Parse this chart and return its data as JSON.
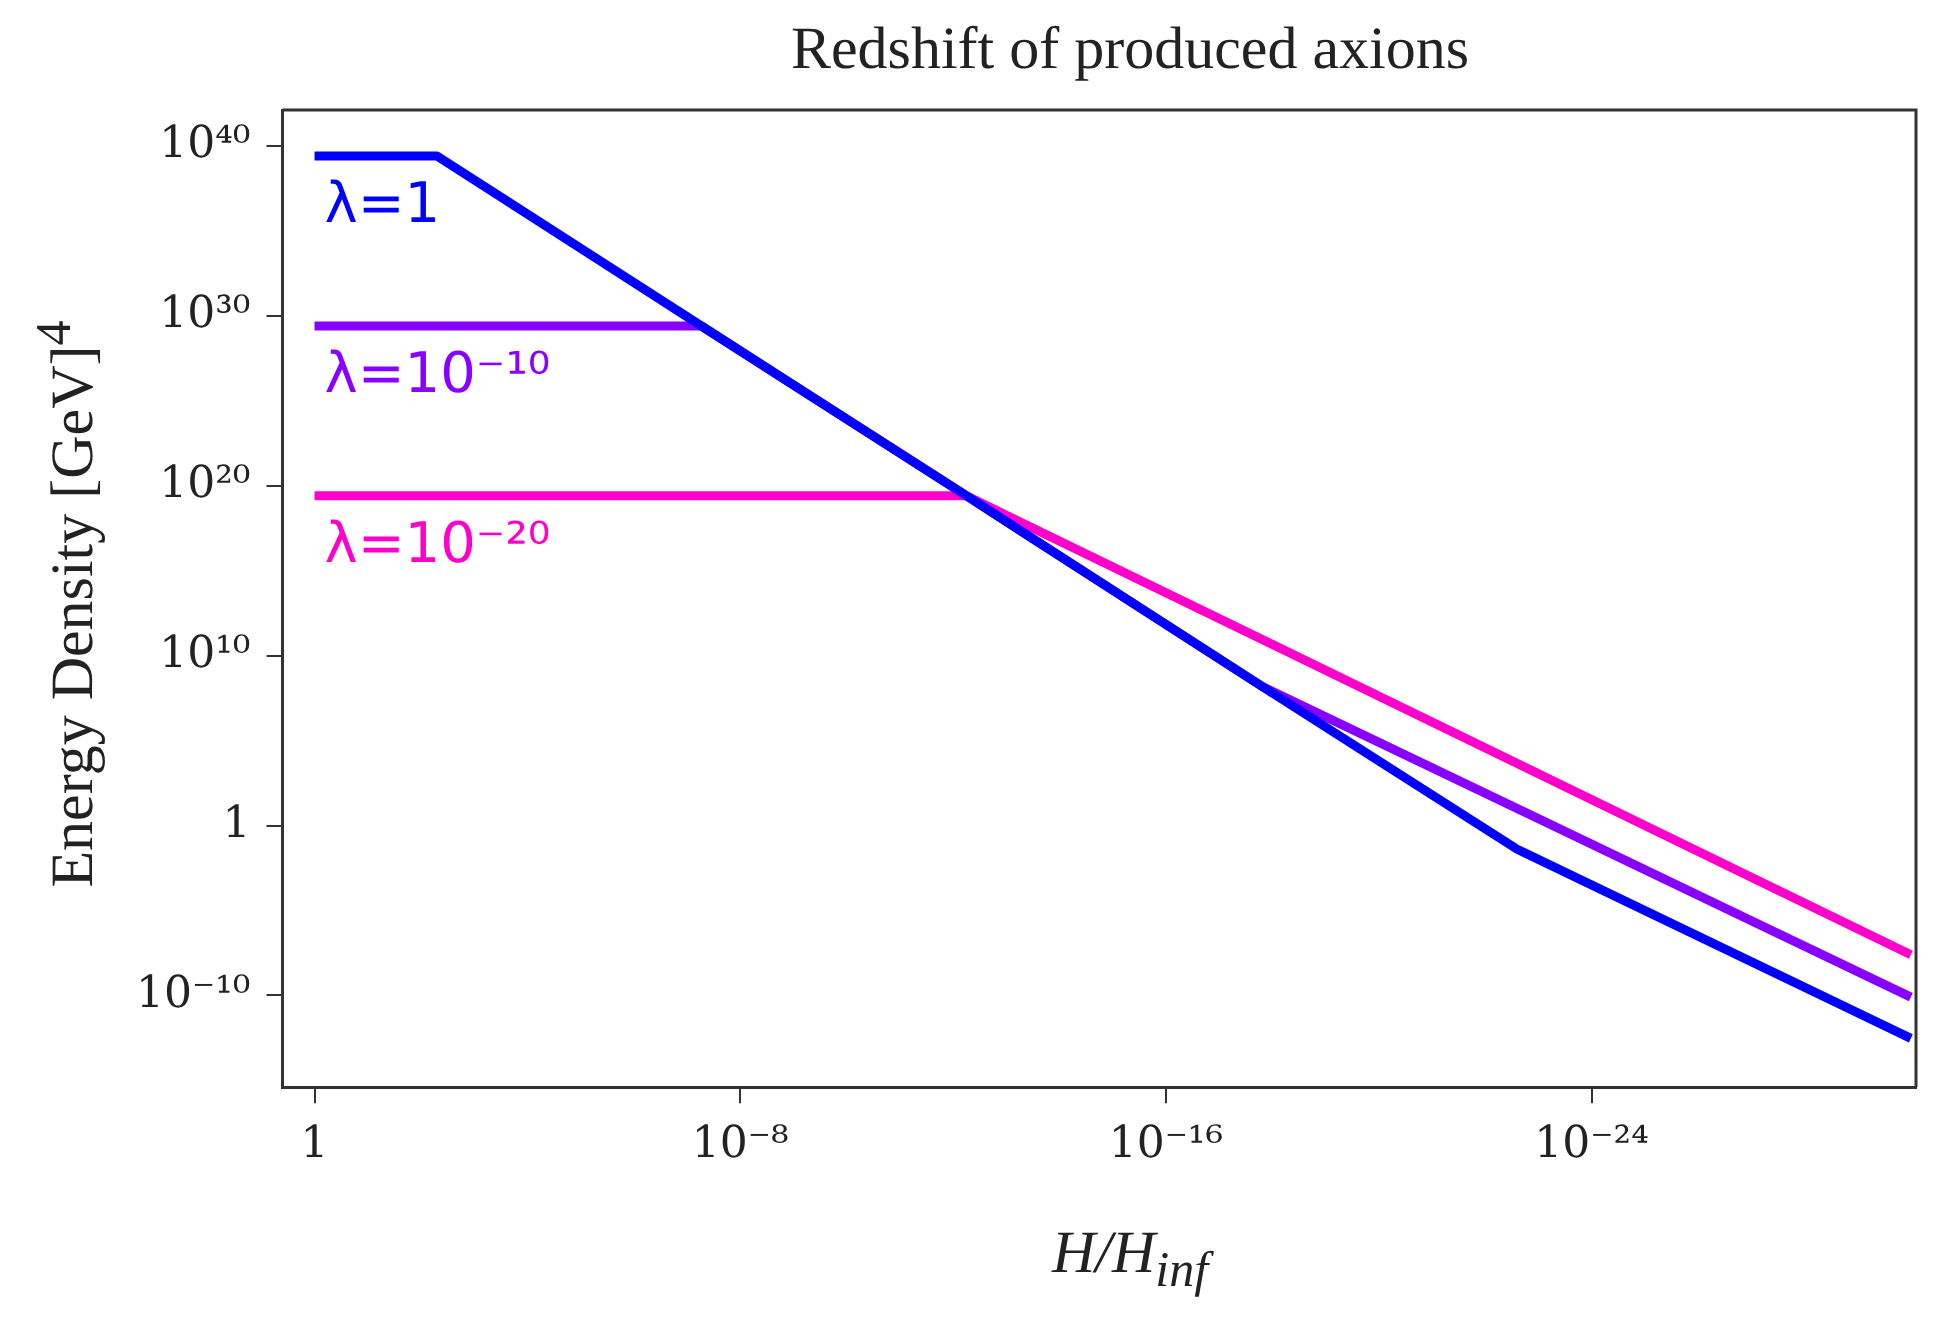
{
  "chart_data": {
    "type": "line",
    "title": "Redshift of produced axions",
    "xlabel": "H/H$_{inf}$",
    "ylabel": "Energy Density [GeV]$^{4}$",
    "log": "xy",
    "grid": false,
    "legend": false,
    "marker": "none",
    "line_style": "solid",
    "xlim": [
      4,
      8e-31
    ],
    "ylim": [
      4e-16,
      1.26e+42
    ],
    "xticks": [
      1,
      {
        "value": 1e-08,
        "label": "10⁻⁸"
      },
      {
        "value": 1e-16,
        "label": "10⁻¹⁶"
      },
      {
        "value": 1e-24,
        "label": "10⁻²⁴"
      }
    ],
    "yticks": [
      {
        "value": 1e-10,
        "label": "10⁻¹⁰"
      },
      1,
      {
        "value": 10000000000.0,
        "label": "10¹⁰"
      },
      {
        "value": 1e+20,
        "label": "10²⁰"
      },
      {
        "value": 1e+30,
        "label": "10³⁰"
      },
      {
        "value": 1e+40,
        "label": "10⁴⁰"
      }
    ],
    "series": [
      {
        "name": "λ=1",
        "color": "#0000ff",
        "x": [
          1,
          0.005,
          5.4e-08,
          5.6e-13,
          1.6e-18,
          2.5e-23,
          1e-30
        ],
        "values": [
          2.5e+39,
          2.5e+39,
          2.5e+29,
          2.5e+19,
          160000000.0,
          0.04,
          3e-13
        ]
      },
      {
        "name": "λ=10⁻¹⁰",
        "color": "#8800ff",
        "x": [
          1,
          5.4e-08,
          5.6e-13,
          1.6e-18,
          1e-30
        ],
        "values": [
          2.5e+29,
          2.5e+29,
          2.5e+19,
          160000000.0,
          8e-11
        ]
      },
      {
        "name": "λ=10⁻²⁰",
        "color": "#ff00cc",
        "x": [
          1,
          5.6e-13,
          1e-30
        ],
        "values": [
          2.5e+19,
          2.5e+19,
          2.5e-08
        ]
      }
    ]
  }
}
